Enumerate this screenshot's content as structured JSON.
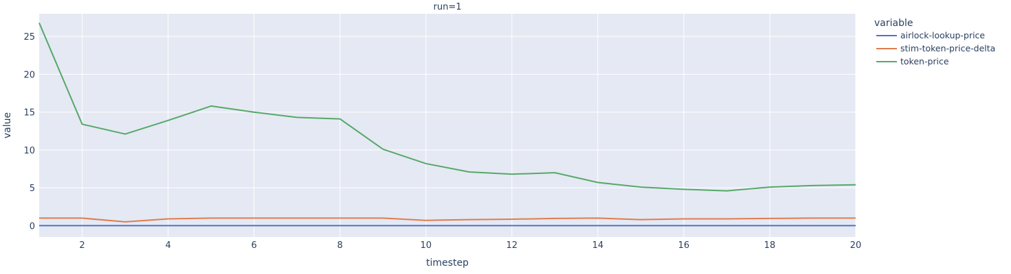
{
  "chart_data": {
    "type": "line",
    "facet_title": "run=1",
    "xlabel": "timestep",
    "ylabel": "value",
    "legend_title": "variable",
    "legend_position": "right",
    "grid": true,
    "xlim": [
      1,
      20
    ],
    "ylim": [
      -1.5,
      28
    ],
    "xticks": [
      2,
      4,
      6,
      8,
      10,
      12,
      14,
      16,
      18,
      20
    ],
    "yticks": [
      0,
      5,
      10,
      15,
      20,
      25
    ],
    "x": [
      1,
      2,
      3,
      4,
      5,
      6,
      7,
      8,
      9,
      10,
      11,
      12,
      13,
      14,
      15,
      16,
      17,
      18,
      19,
      20
    ],
    "series": [
      {
        "name": "airlock-lookup-price",
        "color": "#4c72c4",
        "values": [
          0,
          0,
          0,
          0,
          0,
          0,
          0,
          0,
          0,
          0,
          0,
          0,
          0,
          0,
          0,
          0,
          0,
          0,
          0,
          0
        ]
      },
      {
        "name": "stim-token-price-delta",
        "color": "#e07b4f",
        "values": [
          1.0,
          1.0,
          0.5,
          0.9,
          1.0,
          1.0,
          1.0,
          1.0,
          1.0,
          0.7,
          0.8,
          0.85,
          0.95,
          1.0,
          0.8,
          0.9,
          0.9,
          0.95,
          1.0,
          1.0
        ]
      },
      {
        "name": "token-price",
        "color": "#55a868",
        "values": [
          26.8,
          13.4,
          12.1,
          13.9,
          15.8,
          15.0,
          14.3,
          14.1,
          10.1,
          8.2,
          7.1,
          6.8,
          7.0,
          5.7,
          5.1,
          4.8,
          4.6,
          5.1,
          5.3,
          5.4
        ]
      }
    ]
  }
}
